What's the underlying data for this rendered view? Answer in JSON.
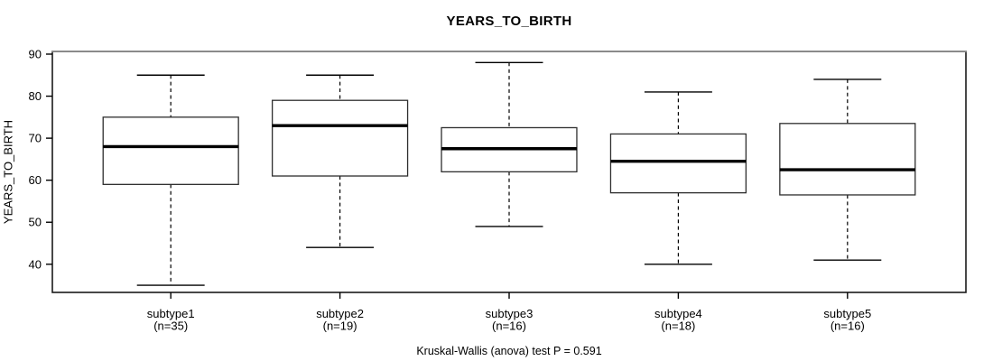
{
  "title": "YEARS_TO_BIRTH",
  "caption": "Kruskal-Wallis (anova) test P = 0.591",
  "colors": {
    "background": "#ffffff",
    "line": "#000000",
    "frame_top": "#8a8a8a",
    "frame": "#1a1a1a",
    "box_stroke": "#2e2e2e",
    "box_fill": "#ffffff",
    "median": "#000000"
  },
  "chart_data": {
    "type": "boxplot",
    "title": "YEARS_TO_BIRTH",
    "ylabel": "YEARS_TO_BIRTH",
    "xlabel": "",
    "caption": "Kruskal-Wallis (anova) test P = 0.591",
    "categories": [
      "subtype1",
      "subtype2",
      "subtype3",
      "subtype4",
      "subtype5"
    ],
    "category_sublabels": [
      "(n=35)",
      "(n=19)",
      "(n=16)",
      "(n=18)",
      "(n=16)"
    ],
    "sample_sizes": [
      35,
      19,
      16,
      18,
      16
    ],
    "series": [
      {
        "name": "subtype1",
        "n": 35,
        "whisker_low": 35,
        "q1": 59,
        "median": 68,
        "q3": 75,
        "whisker_high": 85
      },
      {
        "name": "subtype2",
        "n": 19,
        "whisker_low": 44,
        "q1": 61,
        "median": 73,
        "q3": 79,
        "whisker_high": 85
      },
      {
        "name": "subtype3",
        "n": 16,
        "whisker_low": 49,
        "q1": 62,
        "median": 67.5,
        "q3": 72.5,
        "whisker_high": 88
      },
      {
        "name": "subtype4",
        "n": 18,
        "whisker_low": 40,
        "q1": 57,
        "median": 64.5,
        "q3": 71,
        "whisker_high": 81
      },
      {
        "name": "subtype5",
        "n": 16,
        "whisker_low": 41,
        "q1": 56.5,
        "median": 62.5,
        "q3": 73.5,
        "whisker_high": 84
      }
    ],
    "yticks": [
      40,
      50,
      60,
      70,
      80,
      90
    ],
    "ylim": [
      33.3,
      90.64
    ],
    "grid": false,
    "legend": null,
    "outliers": []
  }
}
